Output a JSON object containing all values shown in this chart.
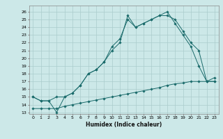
{
  "title": "",
  "xlabel": "Humidex (Indice chaleur)",
  "bg_color": "#cce8e8",
  "grid_color": "#aacccc",
  "line_color": "#1a6b6b",
  "xlim": [
    -0.5,
    23.5
  ],
  "ylim": [
    12.8,
    26.8
  ],
  "yticks": [
    13,
    14,
    15,
    16,
    17,
    18,
    19,
    20,
    21,
    22,
    23,
    24,
    25,
    26
  ],
  "xticks": [
    0,
    1,
    2,
    3,
    4,
    5,
    6,
    7,
    8,
    9,
    10,
    11,
    12,
    13,
    14,
    15,
    16,
    17,
    18,
    19,
    20,
    21,
    22,
    23
  ],
  "line1_x": [
    0,
    1,
    2,
    3,
    4,
    5,
    6,
    7,
    8,
    9,
    10,
    11,
    12,
    13,
    14,
    15,
    16,
    17,
    18,
    19,
    20,
    21,
    22,
    23
  ],
  "line1_y": [
    15.0,
    14.5,
    14.5,
    13.0,
    15.0,
    15.5,
    16.5,
    18.0,
    18.5,
    19.5,
    21.5,
    22.5,
    25.0,
    24.0,
    24.5,
    25.0,
    25.5,
    26.0,
    24.5,
    23.0,
    21.5,
    19.0,
    17.0,
    17.0
  ],
  "line2_x": [
    0,
    1,
    2,
    3,
    4,
    5,
    6,
    7,
    8,
    9,
    10,
    11,
    12,
    13,
    14,
    15,
    16,
    17,
    18,
    19,
    20,
    21,
    22,
    23
  ],
  "line2_y": [
    15.0,
    14.5,
    14.5,
    15.0,
    15.0,
    15.5,
    16.5,
    18.0,
    18.5,
    19.5,
    21.0,
    22.0,
    25.5,
    24.0,
    24.5,
    25.0,
    25.5,
    25.5,
    25.0,
    23.5,
    22.0,
    21.0,
    17.0,
    17.5
  ],
  "line3_x": [
    0,
    1,
    2,
    3,
    4,
    5,
    6,
    7,
    8,
    9,
    10,
    11,
    12,
    13,
    14,
    15,
    16,
    17,
    18,
    19,
    20,
    21,
    22,
    23
  ],
  "line3_y": [
    13.5,
    13.5,
    13.5,
    13.5,
    13.8,
    14.0,
    14.2,
    14.4,
    14.6,
    14.8,
    15.0,
    15.2,
    15.4,
    15.6,
    15.8,
    16.0,
    16.2,
    16.5,
    16.7,
    16.8,
    17.0,
    17.0,
    17.0,
    17.0
  ],
  "tick_fontsize": 4.5,
  "xlabel_fontsize": 5.5,
  "marker_size": 1.8,
  "linewidth": 0.7
}
